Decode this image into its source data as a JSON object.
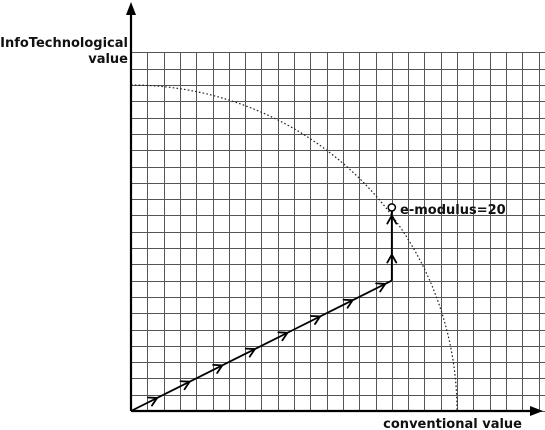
{
  "diagram": {
    "y_axis_label_line1": "InfoTechnological",
    "y_axis_label_line2": "value",
    "x_axis_label": "conventional value",
    "point_label": "e-modulus=20",
    "grid_step": 1,
    "grid_max_x": 27,
    "grid_max_y": 22,
    "arc_radius": 20,
    "path_points": [
      [
        0,
        0
      ],
      [
        2,
        1
      ],
      [
        4,
        2
      ],
      [
        6,
        3
      ],
      [
        8,
        4
      ],
      [
        10,
        5
      ],
      [
        12,
        6
      ],
      [
        14,
        7
      ],
      [
        16,
        8
      ],
      [
        16,
        10
      ],
      [
        16,
        12.49
      ]
    ],
    "point": [
      16,
      12.49
    ],
    "colors": {
      "line": "#000000",
      "grid": "#555555",
      "background": "#ffffff"
    }
  }
}
